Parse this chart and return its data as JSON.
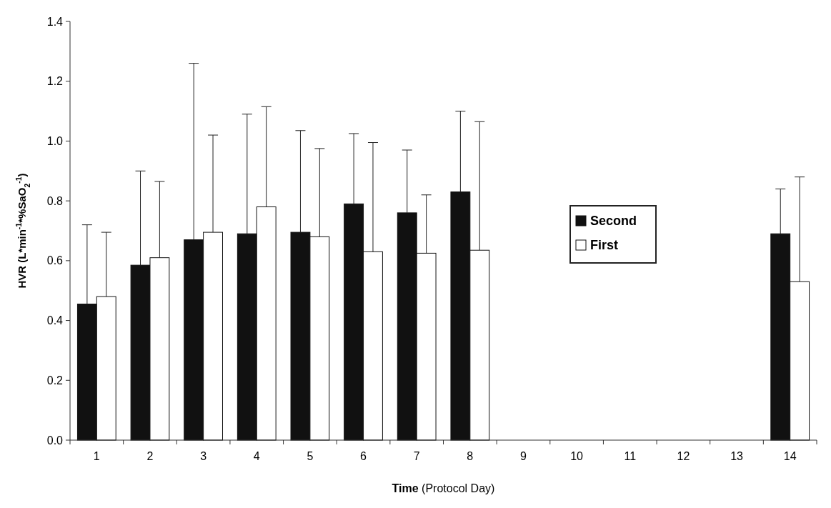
{
  "chart_data": {
    "type": "bar",
    "xlabel": "Time (Protocol Day)",
    "ylabel": "HVR (L*min$^{-1}$*%SaO$_{2}$$^{-1}$)",
    "categories": [
      "1",
      "2",
      "3",
      "4",
      "5",
      "6",
      "7",
      "8",
      "9",
      "10",
      "11",
      "12",
      "13",
      "14"
    ],
    "series": [
      {
        "name": "Second",
        "color": "#111111",
        "values": [
          0.455,
          0.585,
          0.67,
          0.69,
          0.695,
          0.79,
          0.76,
          0.83,
          null,
          null,
          null,
          null,
          null,
          0.69
        ],
        "errors": [
          [
            0.455,
            0.72
          ],
          [
            0.585,
            0.9
          ],
          [
            0.67,
            1.26
          ],
          [
            0.69,
            1.09
          ],
          [
            0.695,
            1.035
          ],
          [
            0.79,
            1.025
          ],
          [
            0.76,
            0.97
          ],
          [
            0.83,
            1.1
          ],
          null,
          null,
          null,
          null,
          null,
          [
            0.69,
            0.84
          ]
        ]
      },
      {
        "name": "First",
        "color": "#ffffff",
        "values": [
          0.48,
          0.61,
          0.695,
          0.78,
          0.68,
          0.63,
          0.625,
          0.635,
          null,
          null,
          null,
          null,
          null,
          0.53
        ],
        "errors": [
          [
            0.48,
            0.695
          ],
          [
            0.61,
            0.865
          ],
          [
            0.695,
            1.02
          ],
          [
            0.78,
            1.115
          ],
          [
            0.68,
            0.975
          ],
          [
            0.63,
            0.995
          ],
          [
            0.625,
            0.82
          ],
          [
            0.635,
            1.065
          ],
          null,
          null,
          null,
          null,
          null,
          [
            0.53,
            0.88
          ]
        ]
      }
    ],
    "ylim": [
      0,
      1.4
    ],
    "yticks": [
      {
        "value": 0,
        "label": "0.0"
      },
      {
        "value": 0.2,
        "label": "0.2"
      },
      {
        "value": 0.4,
        "label": "0.4"
      },
      {
        "value": 0.6,
        "label": "0.6"
      },
      {
        "value": 0.8,
        "label": "0.8"
      },
      {
        "value": 1,
        "label": "1.0"
      },
      {
        "value": 1.2,
        "label": "1.2"
      },
      {
        "value": 1.4,
        "label": "1.4"
      }
    ],
    "legend": "right",
    "grid": false
  }
}
